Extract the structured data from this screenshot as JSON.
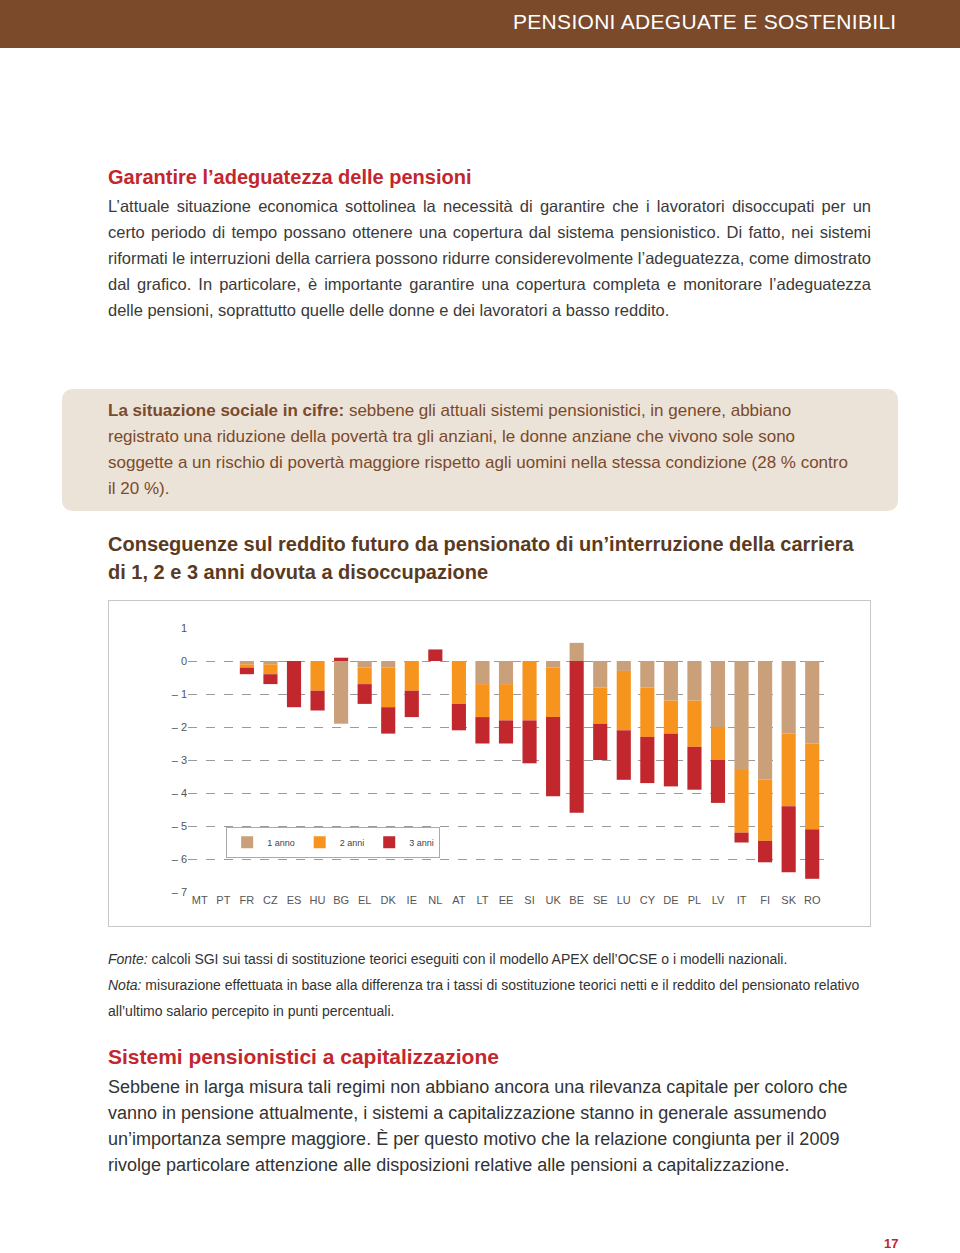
{
  "header": {
    "title": "PENSIONI ADEGUATE E SOSTENIBILI"
  },
  "section1": {
    "heading": "Garantire l’adeguatezza delle pensioni",
    "paragraph": "L’attuale situazione economica sottolinea la necessità di garantire che i lavoratori disoccupati per un certo periodo di tempo possano ottenere una copertura dal sistema pensionistico. Di fatto, nei sistemi riformati le interruzioni della carriera possono ridurre considerevolmente l’adeguatezza, come dimostrato dal grafico. In particolare, è importante garantire una copertura completa e monitorare l’adeguatezza delle pensioni, soprattutto quelle delle donne e dei lavoratori a basso reddito."
  },
  "box": {
    "lead": "La situazione sociale in cifre:",
    "text": "sebbene gli attuali sistemi pensionistici, in genere, abbiano registrato una riduzione della povertà tra gli anziani, le donne anziane che vivono sole sono soggette a un rischio di povertà maggiore rispetto agli uomini nella stessa condizione (28 % contro il 20 %)."
  },
  "chart_data": {
    "type": "bar",
    "title": "Conseguenze sul reddito futuro da pensionato di un’interruzione della carriera di 1, 2 e 3 anni dovuta a disoccupazione",
    "categories": [
      "MT",
      "PT",
      "FR",
      "CZ",
      "ES",
      "HU",
      "BG",
      "EL",
      "DK",
      "IE",
      "NL",
      "AT",
      "LT",
      "EE",
      "SI",
      "UK",
      "BE",
      "SE",
      "LU",
      "CY",
      "DE",
      "PL",
      "LV",
      "IT",
      "FI",
      "SK",
      "RO"
    ],
    "series": [
      {
        "name": "1 anno",
        "color": "#c9a07a",
        "values": [
          0,
          0,
          -0.1,
          -0.1,
          0,
          0,
          -1.9,
          -0.2,
          -0.2,
          0,
          0,
          0,
          -0.7,
          -0.7,
          0,
          -0.2,
          0.55,
          -0.8,
          -0.3,
          -0.8,
          -1.2,
          -1.2,
          -2.0,
          -3.3,
          -3.6,
          -2.2,
          -2.5
        ]
      },
      {
        "name": "2 anni",
        "color": "#f7941d",
        "values": [
          0,
          0,
          -0.1,
          -0.3,
          0,
          -0.9,
          0,
          -0.5,
          -1.2,
          -0.9,
          0,
          -1.3,
          -1.0,
          -1.1,
          -1.8,
          -1.5,
          0,
          -1.1,
          -1.8,
          -1.5,
          -1.0,
          -1.4,
          -1.0,
          -1.9,
          -1.85,
          -2.2,
          -2.6
        ]
      },
      {
        "name": "3 anni",
        "color": "#c1272d",
        "values": [
          0,
          0,
          -0.2,
          -0.3,
          -1.4,
          -0.6,
          0.1,
          -0.6,
          -0.8,
          -0.8,
          0.35,
          -0.8,
          -0.8,
          -0.7,
          -1.3,
          -2.4,
          -4.6,
          -1.1,
          -1.5,
          -1.4,
          -1.6,
          -1.3,
          -1.3,
          -0.3,
          -0.65,
          -2.0,
          -1.5
        ]
      }
    ],
    "stacked": true,
    "ylim": [
      -7,
      1
    ],
    "yticks": [
      {
        "value": -7,
        "label": "– 7"
      },
      {
        "value": -6,
        "label": "– 6"
      },
      {
        "value": -5,
        "label": "– 5"
      },
      {
        "value": -4,
        "label": "– 4"
      },
      {
        "value": -3,
        "label": "– 3"
      },
      {
        "value": -2,
        "label": "– 2"
      },
      {
        "value": -1,
        "label": "– 1"
      },
      0,
      1
    ],
    "grid": true,
    "legend": "lower left"
  },
  "notes": {
    "source_label": "Fonte:",
    "source": "calcoli SGI sui tassi di sostituzione teorici eseguiti con il modello APEX dell’OCSE o i modelli nazionali.",
    "note_label": "Nota:",
    "note": "misurazione effettuata in base alla differenza tra i tassi di sostituzione teorici netti e il reddito del pensionato relativo all’ultimo salario percepito in punti percentuali."
  },
  "section2": {
    "heading": "Sistemi pensionistici a capitalizzazione",
    "paragraph": "Sebbene in larga misura tali regimi non abbiano ancora una rilevanza capitale per coloro che vanno in pensione attualmente, i sistemi a capitalizzazione stanno in generale assumendo un’importanza sempre maggiore. È per questo motivo che la relazione congiunta per il 2009 rivolge particolare attenzione alle disposizioni relative alle pensioni a capitalizzazione."
  },
  "page_number": 17
}
